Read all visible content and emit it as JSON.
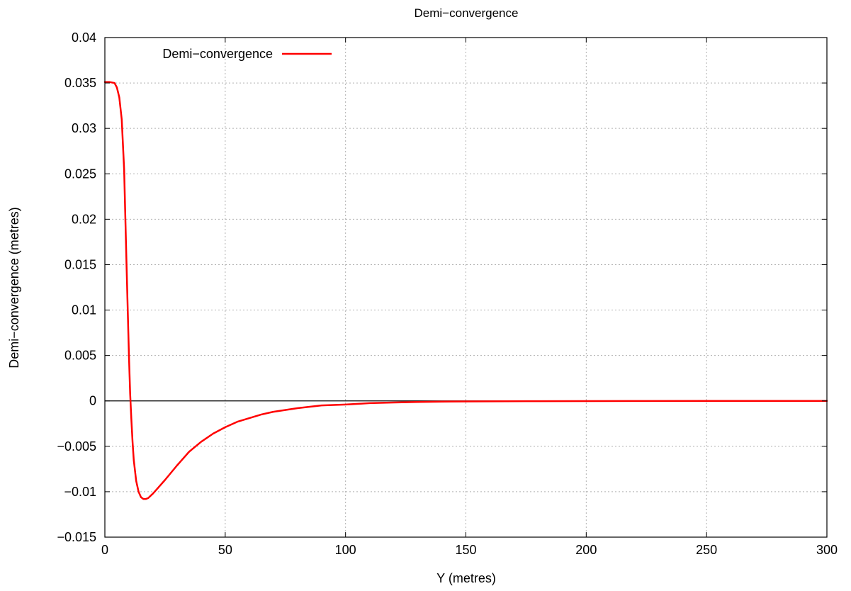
{
  "chart_data": {
    "type": "line",
    "title": "Demi−convergence",
    "xlabel": "Y (metres)",
    "ylabel": "Demi−convergence (metres)",
    "xlim": [
      0,
      300
    ],
    "ylim": [
      -0.015,
      0.04
    ],
    "xticks": [
      {
        "value": 0,
        "label": "0"
      },
      {
        "value": 50,
        "label": "50"
      },
      {
        "value": 100,
        "label": "100"
      },
      {
        "value": 150,
        "label": "150"
      },
      {
        "value": 200,
        "label": "200"
      },
      {
        "value": 250,
        "label": "250"
      },
      {
        "value": 300,
        "label": "300"
      }
    ],
    "yticks": [
      {
        "value": -0.015,
        "label": "−0.015"
      },
      {
        "value": -0.01,
        "label": "−0.01"
      },
      {
        "value": -0.005,
        "label": "−0.005"
      },
      {
        "value": 0,
        "label": "0"
      },
      {
        "value": 0.005,
        "label": "0.005"
      },
      {
        "value": 0.01,
        "label": "0.01"
      },
      {
        "value": 0.015,
        "label": "0.015"
      },
      {
        "value": 0.02,
        "label": "0.02"
      },
      {
        "value": 0.025,
        "label": "0.025"
      },
      {
        "value": 0.03,
        "label": "0.03"
      },
      {
        "value": 0.035,
        "label": "0.035"
      },
      {
        "value": 0.04,
        "label": "0.04"
      }
    ],
    "grid": true,
    "zero_line": true,
    "legend_position": "top-left",
    "series": [
      {
        "name": "Demi−convergence",
        "color": "#ff0000",
        "x": [
          0,
          2,
          4,
          5,
          6,
          7,
          8,
          9,
          10,
          10.5,
          11,
          11.5,
          12,
          13,
          14,
          15,
          16,
          17,
          18,
          20,
          22,
          25,
          30,
          35,
          40,
          45,
          50,
          55,
          60,
          65,
          70,
          80,
          90,
          100,
          110,
          120,
          130,
          140,
          150,
          175,
          200,
          225,
          250,
          275,
          300
        ],
        "y": [
          0.0351,
          0.0351,
          0.035,
          0.0345,
          0.0334,
          0.031,
          0.0255,
          0.015,
          0.005,
          0.0008,
          -0.002,
          -0.0045,
          -0.0065,
          -0.0088,
          -0.01,
          -0.0106,
          -0.0108,
          -0.0108,
          -0.0107,
          -0.0102,
          -0.0096,
          -0.0087,
          -0.0071,
          -0.0056,
          -0.0045,
          -0.0036,
          -0.0029,
          -0.0023,
          -0.0019,
          -0.0015,
          -0.0012,
          -0.0008,
          -0.0005,
          -0.0004,
          -0.00025,
          -0.00018,
          -0.00012,
          -8e-05,
          -6e-05,
          -3e-05,
          -2e-05,
          -1e-05,
          0,
          0,
          0
        ]
      }
    ]
  }
}
